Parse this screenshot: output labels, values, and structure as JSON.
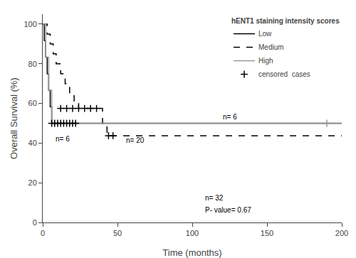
{
  "chart_data": {
    "type": "line",
    "xlabel": "Time (months)",
    "ylabel": "Overall Survival (%)",
    "legend_title": "hENT1 staining intensity scores",
    "legend": "upper right",
    "grid": false,
    "xlim": [
      0,
      200
    ],
    "ylim": [
      0,
      105
    ],
    "xticks": [
      0,
      50,
      100,
      150,
      200
    ],
    "yticks": [
      0,
      20,
      40,
      60,
      80,
      100
    ],
    "series": [
      {
        "name": "Low",
        "type": "step",
        "color": "#000000",
        "line_style": "solid",
        "x": [
          0,
          1,
          2,
          3,
          4,
          5,
          6,
          7,
          8,
          9,
          10,
          11,
          12,
          200
        ],
        "values": [
          100,
          91.7,
          83.3,
          75.0,
          66.7,
          58.3,
          50.0,
          50.0,
          50.0,
          50.0,
          50.0,
          50.0,
          50.0,
          50.0
        ]
      },
      {
        "name": "Medium",
        "type": "step",
        "color": "#000000",
        "line_style": "dashed",
        "x": [
          0,
          3,
          5,
          7,
          9,
          12,
          15,
          18,
          21,
          24,
          28,
          32,
          36,
          40,
          43,
          46,
          50,
          200
        ],
        "values": [
          100,
          95.0,
          90.0,
          85.0,
          80.0,
          75.0,
          70.0,
          65.0,
          60.0,
          57.5,
          57.5,
          57.5,
          57.5,
          50.0,
          43.75,
          43.75,
          43.75,
          43.75
        ]
      },
      {
        "name": "High",
        "type": "step",
        "color": "#999999",
        "line_style": "solid",
        "x": [
          0,
          2,
          4,
          6,
          8,
          200
        ],
        "values": [
          100,
          83.3,
          66.7,
          50.0,
          50.0,
          50.0
        ]
      },
      {
        "name": "censored  cases",
        "type": "scatter",
        "marker": "plus",
        "x": [
          6,
          8,
          10,
          12,
          14,
          16,
          18,
          20,
          22,
          12,
          16,
          20,
          24,
          28,
          32,
          36,
          44,
          47,
          190
        ],
        "values": [
          50,
          50,
          50,
          50,
          50,
          50,
          50,
          50,
          50,
          57.5,
          57.5,
          57.5,
          57.5,
          57.5,
          57.5,
          57.5,
          43.75,
          43.75,
          50.0
        ],
        "colors": [
          "#000000",
          "#000000",
          "#000000",
          "#000000",
          "#000000",
          "#000000",
          "#000000",
          "#000000",
          "#000000",
          "#000000",
          "#000000",
          "#000000",
          "#000000",
          "#000000",
          "#000000",
          "#000000",
          "#000000",
          "#000000",
          "#999999"
        ]
      }
    ],
    "annotations": [
      {
        "text": "n= 6",
        "x": 8,
        "y": 44.5
      },
      {
        "text": "n= 6",
        "x": 120,
        "y": 52
      },
      {
        "text": "n= 20",
        "x": 55,
        "y": 40
      },
      {
        "text": "n= 32",
        "x": 108,
        "y": 11
      },
      {
        "text": "P- value= 0.67",
        "x": 108,
        "y": 5
      }
    ]
  }
}
